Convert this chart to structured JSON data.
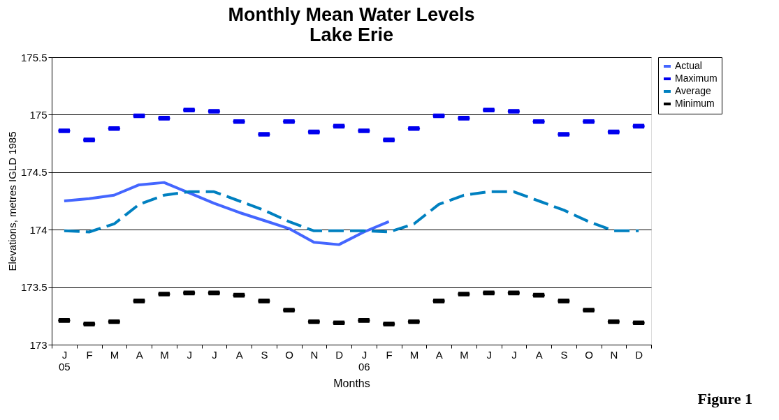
{
  "chart_data": {
    "type": "line",
    "title": "Monthly Mean Water Levels\nLake Erie",
    "xlabel": "Months",
    "ylabel": "Elevations, metres IGLD 1985",
    "categories": [
      "J\n05",
      "F",
      "M",
      "A",
      "M",
      "J",
      "J",
      "A",
      "S",
      "O",
      "N",
      "D",
      "J\n06",
      "F",
      "M",
      "A",
      "M",
      "J",
      "J",
      "A",
      "S",
      "O",
      "N",
      "D"
    ],
    "series": [
      {
        "name": "Actual",
        "line_style": "solid",
        "color": "#4466ff",
        "values": [
          174.25,
          174.27,
          174.3,
          174.39,
          174.41,
          174.32,
          174.23,
          174.15,
          174.08,
          174.01,
          173.89,
          173.87,
          173.98,
          174.07,
          null,
          null,
          null,
          null,
          null,
          null,
          null,
          null,
          null,
          null
        ]
      },
      {
        "name": "Maximum",
        "type": "scatter",
        "color": "#0000ee",
        "values": [
          174.86,
          174.78,
          174.88,
          174.99,
          174.97,
          175.04,
          175.03,
          174.94,
          174.83,
          174.94,
          174.85,
          174.9,
          174.86,
          174.78,
          174.88,
          174.99,
          174.97,
          175.04,
          175.03,
          174.94,
          174.83,
          174.94,
          174.85,
          174.9
        ]
      },
      {
        "name": "Average",
        "line_style": "dashed",
        "color": "#0080c0",
        "values": [
          173.99,
          173.98,
          174.05,
          174.22,
          174.3,
          174.33,
          174.33,
          174.25,
          174.17,
          174.07,
          173.99,
          173.99,
          173.99,
          173.98,
          174.05,
          174.22,
          174.3,
          174.33,
          174.33,
          174.25,
          174.17,
          174.07,
          173.99,
          173.99
        ]
      },
      {
        "name": "Minimum",
        "type": "scatter",
        "color": "#000000",
        "values": [
          173.21,
          173.18,
          173.2,
          173.38,
          173.44,
          173.45,
          173.45,
          173.43,
          173.38,
          173.3,
          173.2,
          173.19,
          173.21,
          173.18,
          173.2,
          173.38,
          173.44,
          173.45,
          173.45,
          173.43,
          173.38,
          173.3,
          173.2,
          173.19
        ]
      }
    ],
    "ylim": [
      173,
      175.5
    ],
    "yticks": [
      173,
      173.5,
      174,
      174.5,
      175,
      175.5
    ],
    "grid": "y",
    "legend": "right",
    "annotations": [
      "Figure 1"
    ]
  }
}
